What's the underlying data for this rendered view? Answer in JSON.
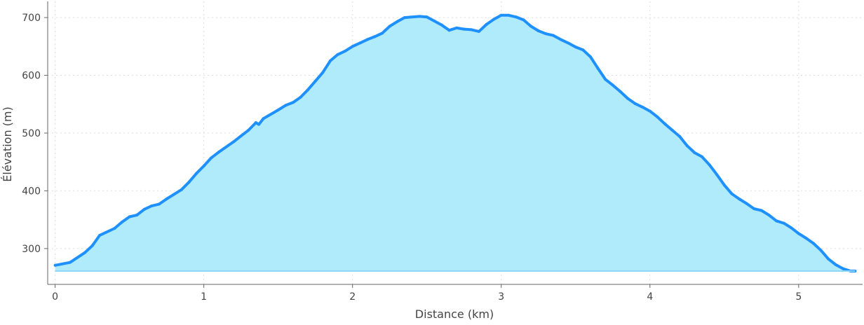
{
  "chart_data": {
    "type": "area",
    "title": "",
    "xlabel": "Distance (km)",
    "ylabel": "Élévation (m)",
    "xlim": [
      -0.05,
      5.43
    ],
    "ylim": [
      238,
      728
    ],
    "xticks": [
      0,
      1,
      2,
      3,
      4,
      5
    ],
    "yticks": [
      300,
      400,
      500,
      600,
      700
    ],
    "grid": true,
    "fill_baseline": 261,
    "colors": {
      "line": "#1e90ff",
      "fill": "#b0ebfc",
      "grid": "#dddddd",
      "axis": "#666666"
    },
    "x": [
      0,
      0.1,
      0.2,
      0.25,
      0.3,
      0.4,
      0.45,
      0.5,
      0.55,
      0.6,
      0.65,
      0.7,
      0.75,
      0.8,
      0.85,
      0.9,
      0.95,
      1.0,
      1.05,
      1.1,
      1.2,
      1.25,
      1.3,
      1.35,
      1.37,
      1.4,
      1.5,
      1.55,
      1.6,
      1.65,
      1.7,
      1.75,
      1.8,
      1.85,
      1.9,
      1.95,
      2.0,
      2.05,
      2.1,
      2.15,
      2.2,
      2.25,
      2.3,
      2.35,
      2.45,
      2.5,
      2.55,
      2.6,
      2.65,
      2.7,
      2.75,
      2.8,
      2.85,
      2.9,
      2.95,
      3.0,
      3.05,
      3.1,
      3.15,
      3.2,
      3.25,
      3.3,
      3.35,
      3.4,
      3.45,
      3.5,
      3.55,
      3.6,
      3.65,
      3.7,
      3.75,
      3.8,
      3.85,
      3.9,
      3.95,
      4.0,
      4.05,
      4.1,
      4.15,
      4.2,
      4.25,
      4.3,
      4.35,
      4.4,
      4.45,
      4.5,
      4.55,
      4.6,
      4.65,
      4.7,
      4.75,
      4.8,
      4.85,
      4.9,
      4.95,
      5.0,
      5.05,
      5.1,
      5.15,
      5.2,
      5.25,
      5.3,
      5.35,
      5.38
    ],
    "y": [
      271,
      276,
      293,
      305,
      323,
      335,
      346,
      355,
      358,
      368,
      374,
      377,
      386,
      394,
      402,
      415,
      430,
      443,
      457,
      467,
      485,
      495,
      505,
      518,
      515,
      525,
      540,
      548,
      553,
      562,
      575,
      590,
      605,
      625,
      636,
      642,
      650,
      656,
      662,
      667,
      673,
      685,
      693,
      700,
      702,
      701,
      694,
      687,
      678,
      682,
      680,
      679,
      676,
      688,
      697,
      704,
      704,
      701,
      696,
      685,
      677,
      672,
      669,
      662,
      656,
      649,
      644,
      632,
      612,
      593,
      583,
      572,
      560,
      551,
      545,
      538,
      528,
      516,
      505,
      494,
      478,
      466,
      459,
      445,
      428,
      410,
      395,
      386,
      378,
      369,
      366,
      358,
      348,
      344,
      336,
      326,
      318,
      309,
      297,
      282,
      272,
      265,
      261,
      261
    ]
  }
}
